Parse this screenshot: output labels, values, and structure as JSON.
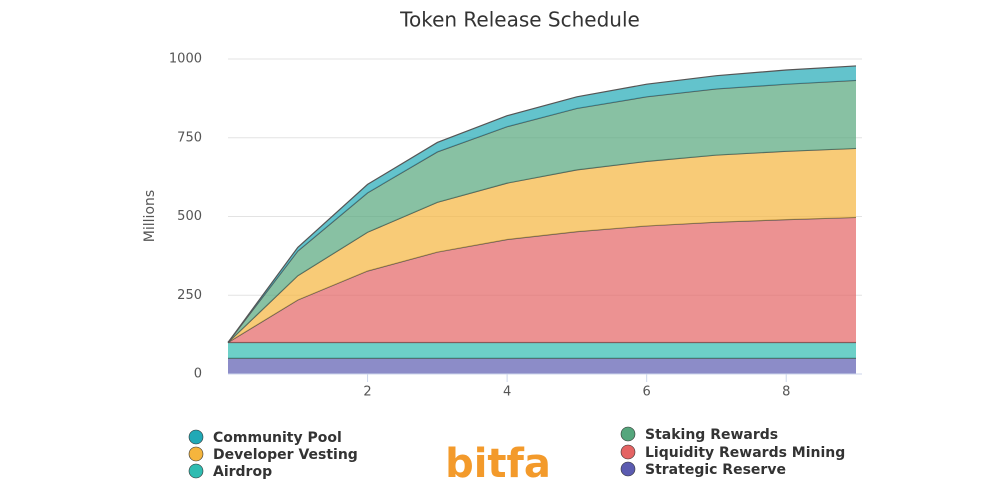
{
  "chart_data": {
    "type": "stacked-area",
    "title": "Token Release Schedule",
    "y_label": "Millions",
    "x": [
      0,
      1,
      2,
      3,
      4,
      5,
      6,
      7,
      8,
      9
    ],
    "xlim": [
      0,
      9
    ],
    "xticks": [
      2,
      4,
      6,
      8
    ],
    "ylim": [
      0,
      1000
    ],
    "yticks": [
      0,
      250,
      500,
      750,
      1000
    ],
    "grid": true,
    "series": [
      {
        "name": "Strategic Reserve",
        "color": "#5b5bb0",
        "values": [
          50,
          50,
          50,
          50,
          50,
          50,
          50,
          50,
          50,
          50
        ]
      },
      {
        "name": "Airdrop",
        "color": "#2fbcb1",
        "values": [
          50,
          50,
          50,
          50,
          50,
          50,
          50,
          50,
          50,
          50
        ]
      },
      {
        "name": "Liquidity Rewards Mining",
        "color": "#e46464",
        "values": [
          0,
          135,
          227,
          287,
          327,
          352,
          370,
          382,
          390,
          397
        ]
      },
      {
        "name": "Developer Vesting",
        "color": "#f5b53d",
        "values": [
          0,
          77,
          123,
          158,
          179,
          196,
          205,
          213,
          217,
          219
        ]
      },
      {
        "name": "Staking Rewards",
        "color": "#55a67c",
        "values": [
          0,
          78,
          125,
          160,
          179,
          195,
          205,
          210,
          213,
          216
        ]
      },
      {
        "name": "Community Pool",
        "color": "#21a9b6",
        "values": [
          0,
          12,
          27,
          30,
          35,
          37,
          40,
          42,
          45,
          46
        ]
      }
    ],
    "logo": "bitfa"
  }
}
